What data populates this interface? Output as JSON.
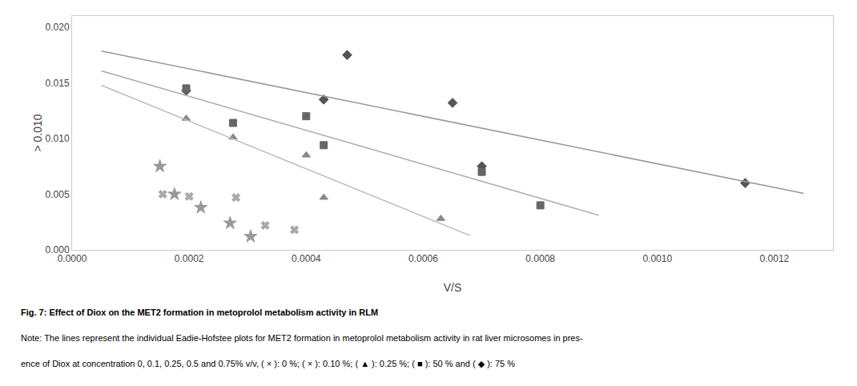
{
  "chart_data": {
    "type": "scatter",
    "xlabel": "V/S",
    "ylabel": "> 0.010",
    "xlim": [
      0.0,
      0.0013
    ],
    "ylim": [
      0.0,
      0.021
    ],
    "xticks": [
      {
        "value": 0,
        "label": "0.0000"
      },
      0.0002,
      0.0004,
      0.0006,
      0.0008,
      {
        "value": 0.001,
        "label": "0.0010"
      },
      0.0012
    ],
    "yticks": [
      {
        "value": 0,
        "label": "0.000"
      },
      0.005,
      {
        "value": 0.01,
        "label": "0.010"
      },
      0.015,
      {
        "value": 0.02,
        "label": "0.020"
      }
    ],
    "grid": false,
    "annotations": [
      "Fig. 7: Effect of Diox on the MET2 formation in metoprolol metabolism activity in RLM",
      "Note: The lines represent the individual Eadie-Hofstee plots for MET2 formation in metoprolol metabolism activity in rat liver microsomes in pres-",
      "ence of Diox at concentration 0, 0.1, 0.25, 0.5 and 0.75% v/v, ( × ): 0 %; ( × ): 0.10 %; ( ▲ ): 0.25 %; ( ■ ): 50 % and ( ◆ ): 75 %"
    ],
    "series": [
      {
        "type": "scatter",
        "marker": "diamond",
        "color": "#555555",
        "x": [
          0.000195,
          0.00043,
          0.00047,
          0.00065,
          0.0007,
          0.00115
        ],
        "values": [
          0.0143,
          0.0135,
          0.0175,
          0.0132,
          0.0075,
          0.006
        ]
      },
      {
        "type": "line",
        "color": "#999999",
        "x": [
          5e-05,
          0.00125
        ],
        "values": [
          0.0178509,
          0.005066
        ]
      },
      {
        "type": "scatter",
        "marker": "square",
        "color": "#666666",
        "x": [
          0.000195,
          0.000275,
          0.0004,
          0.00043,
          0.0007,
          0.0008
        ],
        "values": [
          0.0145,
          0.0114,
          0.012,
          0.0094,
          0.007,
          0.004
        ]
      },
      {
        "type": "line",
        "color": "#aaaaaa",
        "x": [
          5e-05,
          0.0009
        ],
        "values": [
          0.0160759,
          0.003103
        ]
      },
      {
        "type": "scatter",
        "marker": "triangle-up",
        "color": "#888888",
        "x": [
          0.000195,
          0.000275,
          0.0004,
          0.00043,
          0.00063
        ],
        "values": [
          0.0118,
          0.0101,
          0.0085,
          0.0047,
          0.0028
        ]
      },
      {
        "type": "line",
        "color": "#bbbbbb",
        "x": [
          5e-05,
          0.00068
        ],
        "values": [
          0.014776,
          0.0012835
        ]
      },
      {
        "type": "scatter",
        "marker": "x",
        "color": "#aaaaaa",
        "x": [
          0.000155,
          0.0002,
          0.00028,
          0.00033,
          0.00038
        ],
        "values": [
          0.005,
          0.0048,
          0.0047,
          0.0022,
          0.0018
        ]
      },
      {
        "type": "scatter",
        "marker": "star",
        "color": "#999999",
        "x": [
          0.00015,
          0.000175,
          0.00022,
          0.00027,
          0.000305
        ],
        "values": [
          0.0075,
          0.005,
          0.0038,
          0.0024,
          0.0012
        ]
      }
    ]
  }
}
